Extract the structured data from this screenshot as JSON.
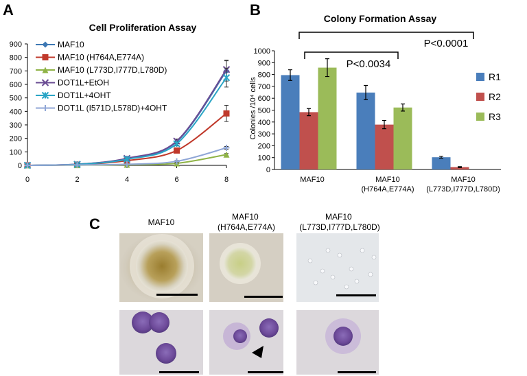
{
  "panels": {
    "A": "A",
    "B": "B",
    "C": "C"
  },
  "chart_data": [
    {
      "type": "line",
      "title": "Cell Proliferation Assay",
      "xlabel": "",
      "ylabel": "",
      "xlim": [
        0,
        8
      ],
      "ylim": [
        0,
        900
      ],
      "x_ticks": [
        0,
        2,
        4,
        6,
        8
      ],
      "y_ticks": [
        0,
        100,
        200,
        300,
        400,
        500,
        600,
        700,
        800,
        900
      ],
      "grid": false,
      "legend_position": "top-left",
      "x": [
        0,
        2,
        4,
        6,
        8
      ],
      "series": [
        {
          "name": "MAF10",
          "color": "#3d78b4",
          "marker": "diamond",
          "values": [
            0,
            8,
            50,
            175,
            700
          ],
          "errors": [
            0,
            4,
            8,
            15,
            75
          ]
        },
        {
          "name": "MAF10 (H764A,E774A)",
          "color": "#c0392b",
          "marker": "square",
          "values": [
            0,
            5,
            35,
            110,
            385
          ],
          "errors": [
            0,
            3,
            6,
            12,
            60
          ]
        },
        {
          "name": "MAF10 (L773D,I777D,L780D)",
          "color": "#8fb346",
          "marker": "triangle",
          "values": [
            0,
            2,
            5,
            15,
            80
          ],
          "errors": [
            0,
            1,
            2,
            4,
            8
          ]
        },
        {
          "name": "DOT1L+EtOH",
          "color": "#6a4c93",
          "marker": "x",
          "values": [
            0,
            8,
            52,
            180,
            710
          ],
          "errors": [
            0,
            4,
            8,
            15,
            70
          ]
        },
        {
          "name": "DOT1L+4OHT",
          "color": "#2aa5c5",
          "marker": "asterisk",
          "values": [
            0,
            7,
            45,
            160,
            650
          ],
          "errors": [
            0,
            4,
            8,
            15,
            70
          ]
        },
        {
          "name": "DOT1L (I571D,L578D)+4OHT",
          "color": "#8fa6d6",
          "marker": "plus",
          "values": [
            0,
            3,
            8,
            30,
            130
          ],
          "errors": [
            0,
            1,
            2,
            5,
            10
          ]
        }
      ]
    },
    {
      "type": "bar",
      "title": "Colony Formation Assay",
      "xlabel": "",
      "ylabel": "Colonies /10⁴ cells",
      "ylim": [
        0,
        1000
      ],
      "y_ticks": [
        0,
        100,
        200,
        300,
        400,
        500,
        600,
        700,
        800,
        900,
        1000
      ],
      "grid": false,
      "legend_position": "right",
      "categories": [
        [
          "MAF10"
        ],
        [
          "MAF10",
          "(H764A,E774A)"
        ],
        [
          "MAF10",
          "(L773D,I777D,L780D)"
        ]
      ],
      "series": [
        {
          "name": "R1",
          "color": "#4a7ebb",
          "values": [
            795,
            648,
            103
          ],
          "errors": [
            45,
            60,
            8
          ]
        },
        {
          "name": "R2",
          "color": "#c0504d",
          "values": [
            483,
            378,
            20
          ],
          "errors": [
            30,
            35,
            4
          ]
        },
        {
          "name": "R3",
          "color": "#9bbb59",
          "values": [
            858,
            522,
            0
          ],
          "errors": [
            75,
            30,
            0
          ]
        }
      ],
      "annotations": [
        "P<0.0034",
        "P<0.0001"
      ]
    }
  ],
  "micrographs": {
    "columns": [
      "MAF10",
      "MAF10\n(H764A,E774A)",
      "MAF10\n(L773D,I777D,L780D)"
    ]
  },
  "colors": {
    "colony_background": "#c9c0b0",
    "colony_center": "#a48a3c",
    "cell_background": "#dcd8dc",
    "cell_stain": "#6e4b9a",
    "scale_bar": "#000000"
  }
}
